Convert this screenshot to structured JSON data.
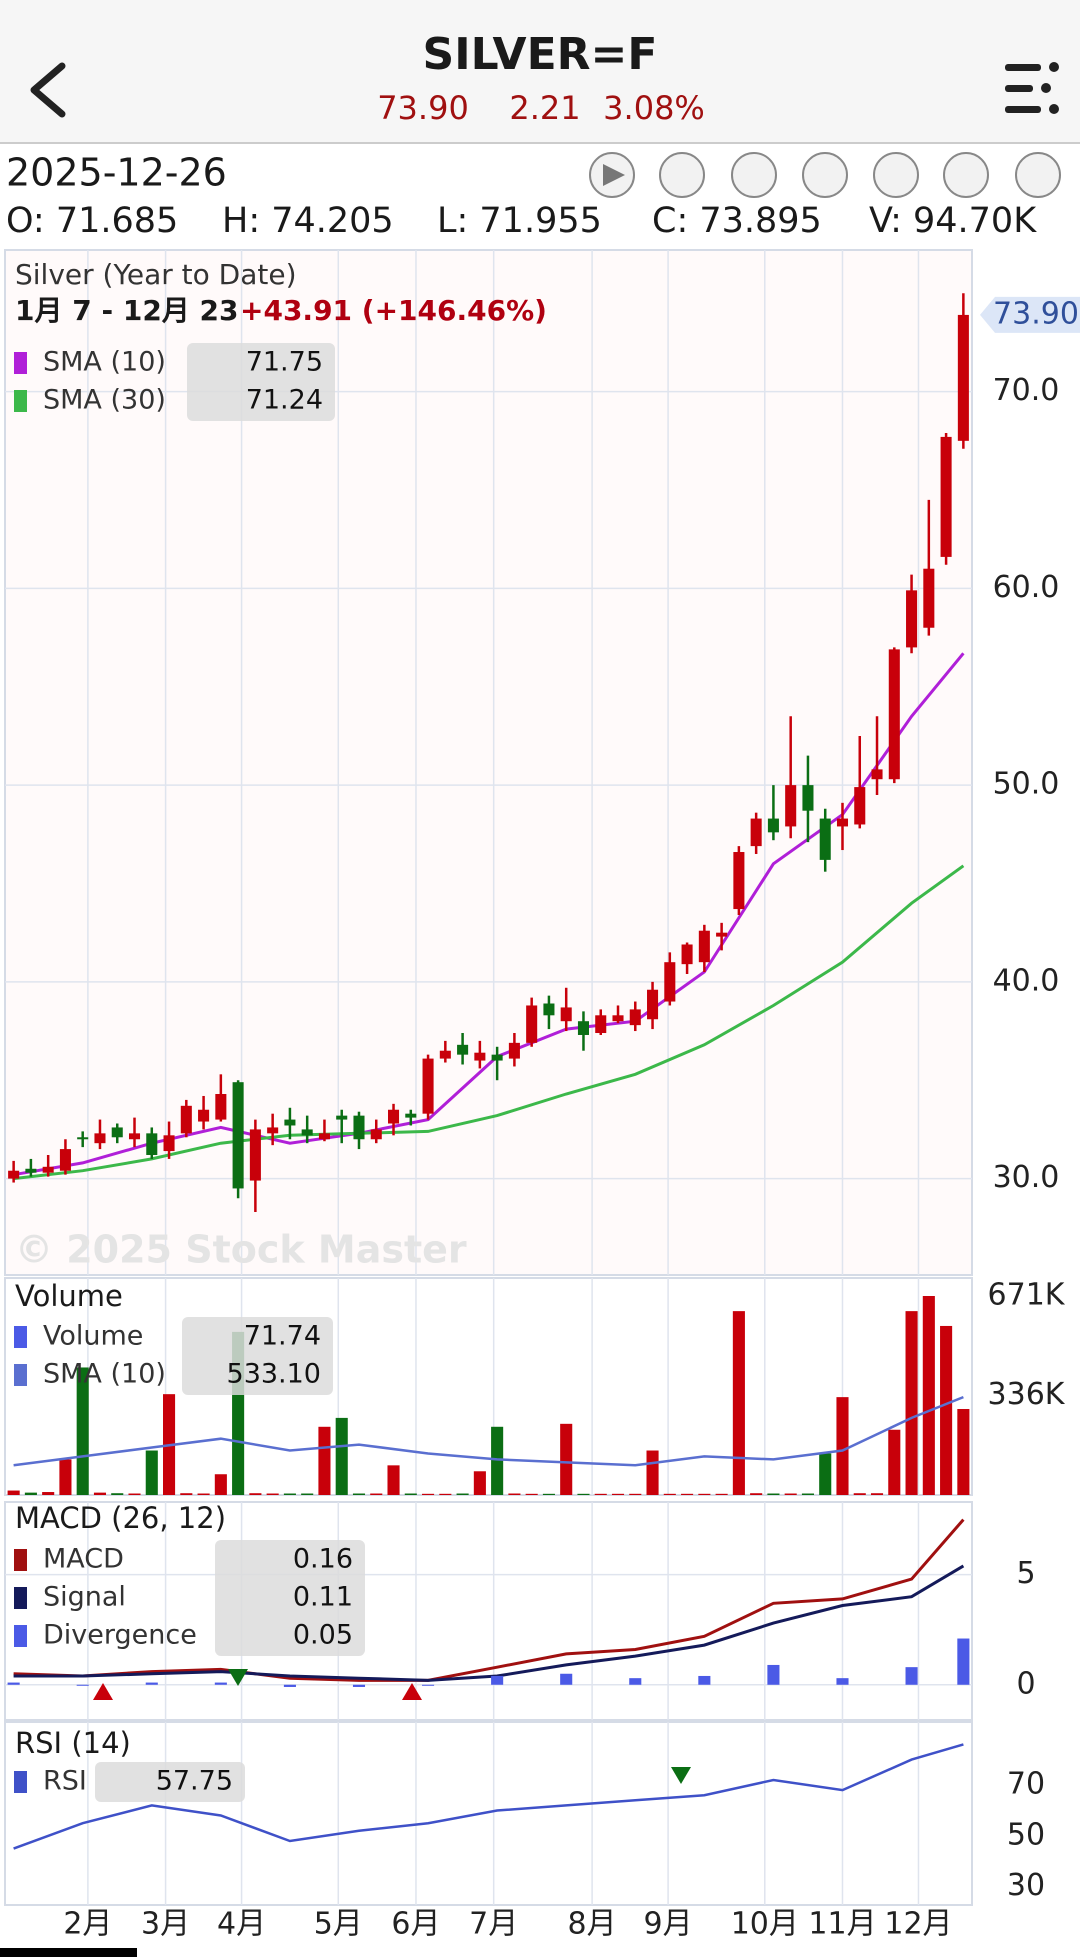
{
  "header": {
    "title": "SILVER=F",
    "price": "73.90",
    "change": "2.21",
    "change_pct": "3.08%"
  },
  "quote": {
    "date": "2025-12-26",
    "open": "O: 71.685",
    "high": "H: 74.205",
    "low": "L: 71.955",
    "close": "C: 73.895",
    "volume": "V: 94.70K"
  },
  "chart_data": [
    {
      "type": "candlestick",
      "title": "Silver (Year to Date)",
      "subtitle": "1月 7 - 12月 23",
      "annotation": "+43.91 (+146.46%)",
      "watermark": "© 2025 Stock Master",
      "last_price_label": "73.90",
      "up_color": "#c8000a",
      "down_color": "#0b6e14",
      "open": [
        30.0,
        30.5,
        30.3,
        30.4,
        32.1,
        31.8,
        32.6,
        32.0,
        32.3,
        31.4,
        32.3,
        32.9,
        33.0,
        34.9,
        29.9,
        32.3,
        33.0,
        32.5,
        32.0,
        33.2,
        33.2,
        32.0,
        32.8,
        33.3,
        33.3,
        36.1,
        36.8,
        36.0,
        36.3,
        36.1,
        36.9,
        38.9,
        38.0,
        38.0,
        37.4,
        38.0,
        37.8,
        38.1,
        39.0,
        40.9,
        41.0,
        42.3,
        43.7,
        46.9,
        48.3,
        47.9,
        50.0,
        48.3,
        47.9,
        48.0,
        50.3,
        50.3,
        57.0,
        58.0,
        61.6,
        67.5
      ],
      "high": [
        30.9,
        31.0,
        31.2,
        32.0,
        32.4,
        33.0,
        32.8,
        33.1,
        32.6,
        32.9,
        34.0,
        34.2,
        35.3,
        35.0,
        33.0,
        33.3,
        33.6,
        33.2,
        33.0,
        33.5,
        33.4,
        33.0,
        33.8,
        33.5,
        36.3,
        37.0,
        37.4,
        37.0,
        36.7,
        37.4,
        39.2,
        39.3,
        39.7,
        38.5,
        38.6,
        38.8,
        39.0,
        40.0,
        41.5,
        42.0,
        42.9,
        43.0,
        46.9,
        48.6,
        50.0,
        53.5,
        51.5,
        48.8,
        49.1,
        52.5,
        53.5,
        57.0,
        60.7,
        64.5,
        67.9,
        75.0
      ],
      "low": [
        29.8,
        30.1,
        30.1,
        30.2,
        31.6,
        31.5,
        31.8,
        31.6,
        31.0,
        31.0,
        32.1,
        32.5,
        32.9,
        29.0,
        28.3,
        31.7,
        32.0,
        31.8,
        31.9,
        31.8,
        31.5,
        31.8,
        32.2,
        32.7,
        33.0,
        35.9,
        35.8,
        35.6,
        35.0,
        35.7,
        36.7,
        37.6,
        37.5,
        36.5,
        37.3,
        37.9,
        37.5,
        37.6,
        38.8,
        40.4,
        40.5,
        41.6,
        43.4,
        46.5,
        47.2,
        47.3,
        47.1,
        45.6,
        46.7,
        47.8,
        49.5,
        50.1,
        56.7,
        57.6,
        61.2,
        67.1
      ],
      "close": [
        30.4,
        30.3,
        30.6,
        31.5,
        32.0,
        32.3,
        32.1,
        32.3,
        31.2,
        32.2,
        33.7,
        33.5,
        34.3,
        29.5,
        32.5,
        32.6,
        32.7,
        32.2,
        32.3,
        33.0,
        32.0,
        32.5,
        33.5,
        33.1,
        36.1,
        36.5,
        36.3,
        36.4,
        36.0,
        36.9,
        38.8,
        38.3,
        38.7,
        37.3,
        38.3,
        38.3,
        38.6,
        39.6,
        41.0,
        41.9,
        42.6,
        42.5,
        46.6,
        48.3,
        47.6,
        50.0,
        48.7,
        46.2,
        48.3,
        49.9,
        50.8,
        56.9,
        59.9,
        61.0,
        67.7,
        73.9
      ],
      "series": [
        {
          "name": "SMA (10)",
          "color": "#b01fd8",
          "legend_value": "71.75",
          "x": [
            0,
            4,
            8,
            12,
            16,
            20,
            24,
            28,
            32,
            36,
            40,
            44,
            48,
            52,
            55
          ],
          "values": [
            30.2,
            30.8,
            31.8,
            32.6,
            31.8,
            32.3,
            33.0,
            36.2,
            37.6,
            38.0,
            40.5,
            46.0,
            48.5,
            53.5,
            56.7
          ]
        },
        {
          "name": "SMA (30)",
          "color": "#3cb84a",
          "legend_value": "71.24",
          "x": [
            0,
            4,
            8,
            12,
            16,
            20,
            24,
            28,
            32,
            36,
            40,
            44,
            48,
            52,
            55
          ],
          "values": [
            30.0,
            30.4,
            31.0,
            31.8,
            32.2,
            32.3,
            32.4,
            33.2,
            34.3,
            35.3,
            36.8,
            38.8,
            41.0,
            44.0,
            45.9
          ]
        }
      ],
      "xlim": [
        -0.5,
        55.5
      ],
      "ylim": [
        25.1,
        77.2
      ],
      "yticks": [
        {
          "value": 30,
          "label": "30.0"
        },
        {
          "value": 40,
          "label": "40.0"
        },
        {
          "value": 50,
          "label": "50.0"
        },
        {
          "value": 60,
          "label": "60.0"
        },
        {
          "value": 70,
          "label": "70.0"
        }
      ],
      "xticks": [
        {
          "value": 4.3,
          "label": "2月"
        },
        {
          "value": 8.8,
          "label": "3月"
        },
        {
          "value": 13.2,
          "label": "4月"
        },
        {
          "value": 18.8,
          "label": "5月"
        },
        {
          "value": 23.3,
          "label": "6月"
        },
        {
          "value": 27.8,
          "label": "7月"
        },
        {
          "value": 33.5,
          "label": "8月"
        },
        {
          "value": 37.9,
          "label": "9月"
        },
        {
          "value": 43.5,
          "label": "10月"
        },
        {
          "value": 48,
          "label": "11月"
        },
        {
          "value": 52.4,
          "label": "12月"
        }
      ],
      "grid": true
    },
    {
      "type": "bar",
      "title": "Volume",
      "series": [
        {
          "name": "Volume",
          "color": "#4b5ae6",
          "legend_value": "71.74",
          "values": [
            15000,
            8000,
            10000,
            120000,
            430000,
            8000,
            6000,
            5000,
            150000,
            340000,
            6000,
            5000,
            70000,
            550000,
            6000,
            5000,
            5000,
            5000,
            230000,
            260000,
            5000,
            5000,
            100000,
            5000,
            4000,
            4000,
            5000,
            80000,
            230000,
            5000,
            4000,
            4000,
            240000,
            4000,
            4000,
            4000,
            4000,
            150000,
            4000,
            4000,
            4000,
            4000,
            620000,
            6000,
            5000,
            5000,
            5000,
            140000,
            330000,
            6000,
            6000,
            220000,
            620000,
            671000,
            570000,
            290000
          ]
        },
        {
          "name": "SMA (10)",
          "color": "#5a6fd0",
          "legend_value": "533.10",
          "x": [
            0,
            4,
            8,
            12,
            16,
            20,
            24,
            28,
            32,
            36,
            40,
            44,
            48,
            52,
            55
          ],
          "values": [
            100000,
            130000,
            160000,
            190000,
            150000,
            170000,
            140000,
            120000,
            110000,
            100000,
            130000,
            120000,
            150000,
            260000,
            330000
          ]
        }
      ],
      "ylim": [
        0,
        731700
      ],
      "yticks": [
        {
          "value": 336000,
          "label": "336K"
        },
        {
          "value": 671000,
          "label": "671K"
        }
      ]
    },
    {
      "type": "macd",
      "title": "MACD (26, 12)",
      "x": [
        0,
        4,
        8,
        12,
        16,
        20,
        24,
        28,
        32,
        36,
        40,
        44,
        48,
        52,
        55
      ],
      "series": [
        {
          "name": "MACD",
          "color": "#a01010",
          "legend_value": "0.16",
          "values": [
            0.5,
            0.4,
            0.6,
            0.7,
            0.3,
            0.2,
            0.2,
            0.8,
            1.4,
            1.6,
            2.2,
            3.7,
            3.9,
            4.8,
            7.5
          ]
        },
        {
          "name": "Signal",
          "color": "#141a5a",
          "legend_value": "0.11",
          "values": [
            0.4,
            0.4,
            0.5,
            0.6,
            0.4,
            0.3,
            0.2,
            0.4,
            0.9,
            1.3,
            1.8,
            2.8,
            3.6,
            4.0,
            5.4
          ]
        },
        {
          "name": "Divergence",
          "color": "#4b5ae6",
          "legend_value": "0.05",
          "type": "bar",
          "values": [
            0.1,
            0.0,
            0.1,
            0.1,
            -0.1,
            -0.1,
            0.0,
            0.4,
            0.5,
            0.3,
            0.4,
            0.9,
            0.3,
            0.8,
            2.1
          ]
        }
      ],
      "ylim": [
        -1.6,
        8.3
      ],
      "yticks": [
        0,
        5
      ]
    },
    {
      "type": "line",
      "title": "RSI (14)",
      "series": [
        {
          "name": "RSI",
          "color": "#3f51c8",
          "legend_value": "57.75",
          "x": [
            0,
            4,
            8,
            12,
            16,
            20,
            24,
            28,
            32,
            36,
            40,
            44,
            48,
            52,
            55
          ],
          "values": [
            45,
            55,
            62,
            58,
            48,
            52,
            55,
            60,
            62,
            64,
            66,
            72,
            68,
            80,
            86
          ]
        }
      ],
      "ylim": [
        22.8,
        94.8
      ],
      "yticks": [
        30,
        50,
        70
      ]
    }
  ]
}
